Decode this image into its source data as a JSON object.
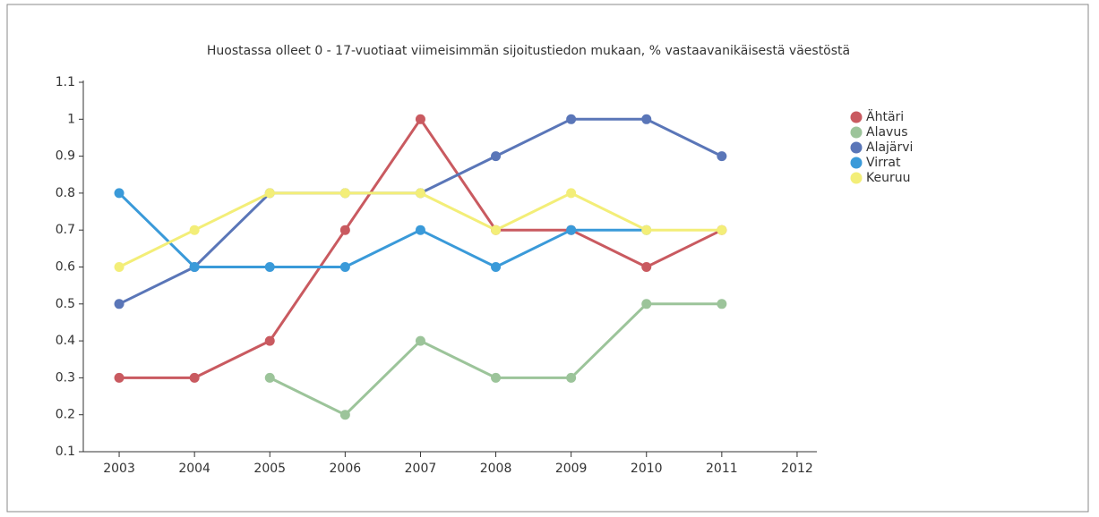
{
  "chart_data": {
    "type": "line",
    "title": "Huostassa olleet 0 - 17-vuotiaat viimeisimmän sijoitustiedon mukaan, % vastaavanikäisestä väestöstä",
    "categories": [
      "2003",
      "2004",
      "2005",
      "2006",
      "2007",
      "2008",
      "2009",
      "2010",
      "2011",
      "2012"
    ],
    "series": [
      {
        "name": "Ähtäri",
        "color": "#c95a60",
        "values": [
          0.3,
          0.3,
          0.4,
          0.7,
          1.0,
          0.7,
          0.7,
          0.6,
          0.7,
          null
        ]
      },
      {
        "name": "Alavus",
        "color": "#9cc49a",
        "values": [
          null,
          null,
          0.3,
          0.2,
          0.4,
          0.3,
          0.3,
          0.5,
          0.5,
          null
        ]
      },
      {
        "name": "Alajärvi",
        "color": "#5a76b8",
        "values": [
          0.5,
          0.6,
          0.8,
          0.8,
          0.8,
          0.9,
          1.0,
          1.0,
          0.9,
          null
        ]
      },
      {
        "name": "Virrat",
        "color": "#3a9ad9",
        "values": [
          0.8,
          0.6,
          0.6,
          0.6,
          0.7,
          0.6,
          0.7,
          0.7,
          null,
          null
        ]
      },
      {
        "name": "Keuruu",
        "color": "#f3ee78",
        "values": [
          0.6,
          0.7,
          0.8,
          0.8,
          0.8,
          0.7,
          0.8,
          0.7,
          0.7,
          null
        ]
      }
    ],
    "ylim": [
      0.1,
      1.1
    ],
    "yticks": [
      0.1,
      0.2,
      0.3,
      0.4,
      0.5,
      0.6,
      0.7,
      0.8,
      0.9,
      1,
      1.1
    ],
    "grid": false,
    "legend": "right"
  }
}
